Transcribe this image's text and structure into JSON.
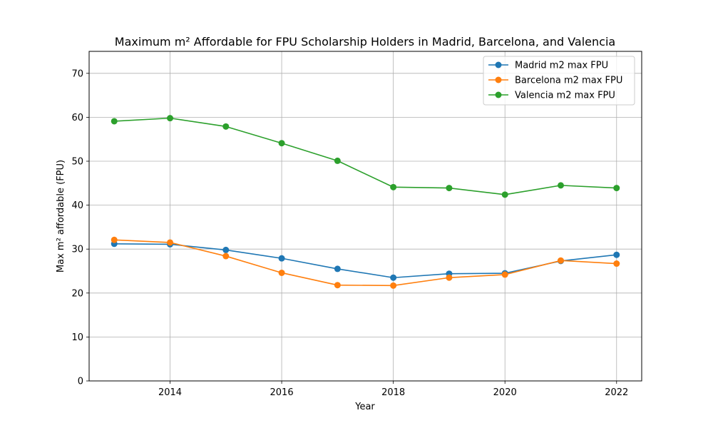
{
  "chart_data": {
    "type": "line",
    "title": "Maximum m² Affordable for FPU Scholarship Holders in Madrid, Barcelona, and Valencia",
    "xlabel": "Year",
    "ylabel": "Max m² affordable (FPU)",
    "x": [
      2013,
      2014,
      2015,
      2016,
      2017,
      2018,
      2019,
      2020,
      2021,
      2022
    ],
    "xlim": [
      2012.55,
      2022.45
    ],
    "ylim": [
      0,
      75
    ],
    "xticks": [
      2014,
      2016,
      2018,
      2020,
      2022
    ],
    "yticks": [
      0,
      10,
      20,
      30,
      40,
      50,
      60,
      70
    ],
    "grid": true,
    "legend_position": "top-right",
    "series": [
      {
        "name": "Madrid m2 max FPU",
        "color": "#1f77b4",
        "values": [
          31.2,
          31.1,
          29.8,
          27.9,
          25.5,
          23.5,
          24.4,
          24.5,
          27.3,
          28.7
        ]
      },
      {
        "name": "Barcelona m2 max FPU",
        "color": "#ff7f0e",
        "values": [
          32.1,
          31.5,
          28.4,
          24.6,
          21.8,
          21.7,
          23.5,
          24.2,
          27.4,
          26.7
        ]
      },
      {
        "name": "Valencia m2 max FPU",
        "color": "#2ca02c",
        "values": [
          59.1,
          59.8,
          57.9,
          54.1,
          50.1,
          44.1,
          43.9,
          42.4,
          44.5,
          43.9
        ]
      }
    ]
  }
}
